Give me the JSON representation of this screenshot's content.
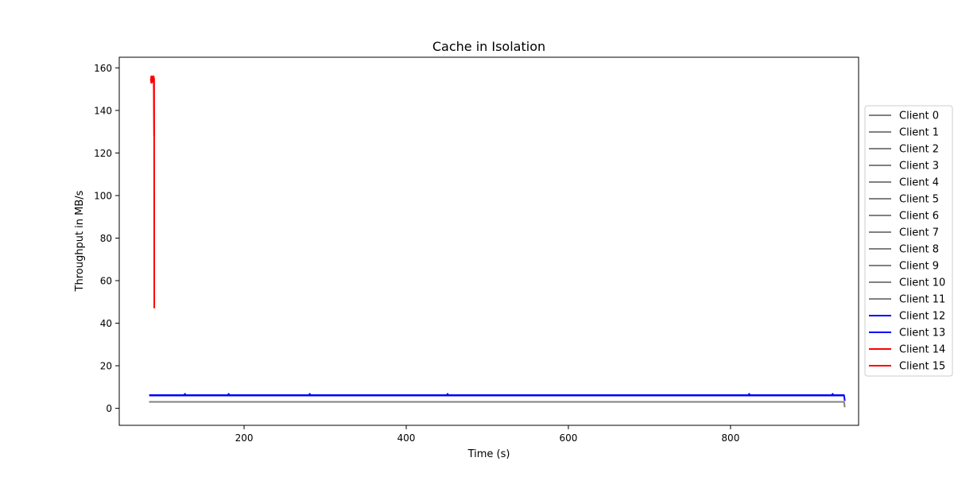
{
  "chart_data": {
    "type": "line",
    "title": "Cache in  Isolation",
    "xlabel": "Time (s)",
    "ylabel": "Throughput in MB/s",
    "xlim": [
      46,
      958
    ],
    "ylim": [
      -8,
      165
    ],
    "x_ticks": [
      200,
      400,
      600,
      800
    ],
    "y_ticks": [
      0,
      20,
      40,
      60,
      80,
      100,
      120,
      140,
      160
    ],
    "grid": false,
    "legend_position": "outside-right",
    "colors": {
      "gray": "#808080",
      "blue": "#0000ff",
      "red": "#ff0000"
    },
    "series": [
      {
        "name": "Client 0",
        "color": "#808080",
        "points": [
          [
            83,
            3.0
          ],
          [
            940,
            3.0
          ],
          [
            941,
            0.5
          ]
        ]
      },
      {
        "name": "Client 1",
        "color": "#808080",
        "points": [
          [
            83,
            3.0
          ],
          [
            940,
            3.0
          ]
        ]
      },
      {
        "name": "Client 2",
        "color": "#808080",
        "points": [
          [
            83,
            3.0
          ],
          [
            940,
            3.0
          ]
        ]
      },
      {
        "name": "Client 3",
        "color": "#808080",
        "points": [
          [
            83,
            3.0
          ],
          [
            940,
            3.0
          ]
        ]
      },
      {
        "name": "Client 4",
        "color": "#808080",
        "points": [
          [
            83,
            3.0
          ],
          [
            940,
            3.0
          ]
        ]
      },
      {
        "name": "Client 5",
        "color": "#808080",
        "points": [
          [
            83,
            3.0
          ],
          [
            940,
            3.0
          ]
        ]
      },
      {
        "name": "Client 6",
        "color": "#808080",
        "points": [
          [
            83,
            3.0
          ],
          [
            940,
            3.0
          ]
        ]
      },
      {
        "name": "Client 7",
        "color": "#808080",
        "points": [
          [
            83,
            3.0
          ],
          [
            940,
            3.0
          ]
        ]
      },
      {
        "name": "Client 8",
        "color": "#808080",
        "points": [
          [
            83,
            3.0
          ],
          [
            940,
            3.0
          ]
        ]
      },
      {
        "name": "Client 9",
        "color": "#808080",
        "points": [
          [
            83,
            3.0
          ],
          [
            940,
            3.0
          ]
        ]
      },
      {
        "name": "Client 10",
        "color": "#808080",
        "points": [
          [
            83,
            3.0
          ],
          [
            940,
            3.0
          ]
        ]
      },
      {
        "name": "Client 11",
        "color": "#808080",
        "points": [
          [
            83,
            3.0
          ],
          [
            940,
            3.0
          ]
        ]
      },
      {
        "name": "Client 12",
        "color": "#0000ff",
        "points": [
          [
            83,
            6.2
          ],
          [
            126,
            6.2
          ],
          [
            127,
            6.8
          ],
          [
            128,
            6.2
          ],
          [
            180,
            6.2
          ],
          [
            181,
            6.8
          ],
          [
            182,
            6.2
          ],
          [
            280,
            6.2
          ],
          [
            281,
            6.8
          ],
          [
            282,
            6.2
          ],
          [
            450,
            6.2
          ],
          [
            451,
            6.8
          ],
          [
            452,
            6.2
          ],
          [
            822,
            6.2
          ],
          [
            823,
            6.8
          ],
          [
            824,
            6.2
          ],
          [
            925,
            6.2
          ],
          [
            926,
            6.8
          ],
          [
            927,
            6.2
          ],
          [
            940,
            6.2
          ],
          [
            941,
            3.5
          ]
        ]
      },
      {
        "name": "Client 13",
        "color": "#0000ff",
        "points": [
          [
            83,
            6.0
          ],
          [
            940,
            6.0
          ]
        ]
      },
      {
        "name": "Client 14",
        "color": "#ff0000",
        "points": [
          [
            85,
            155
          ],
          [
            85.5,
            153
          ],
          [
            86,
            156
          ],
          [
            86.5,
            153.5
          ],
          [
            87,
            155.5
          ],
          [
            87.5,
            154
          ],
          [
            88,
            156
          ],
          [
            88.5,
            153
          ],
          [
            89,
            155
          ],
          [
            89.2,
            47
          ]
        ]
      },
      {
        "name": "Client 15",
        "color": "#ff0000",
        "points": [
          [
            85,
            154
          ],
          [
            85.5,
            156
          ],
          [
            86,
            153
          ],
          [
            86.5,
            155.5
          ],
          [
            87,
            153.5
          ],
          [
            87.5,
            156
          ],
          [
            88,
            154
          ],
          [
            88.5,
            156
          ],
          [
            89,
            128
          ]
        ]
      }
    ]
  }
}
